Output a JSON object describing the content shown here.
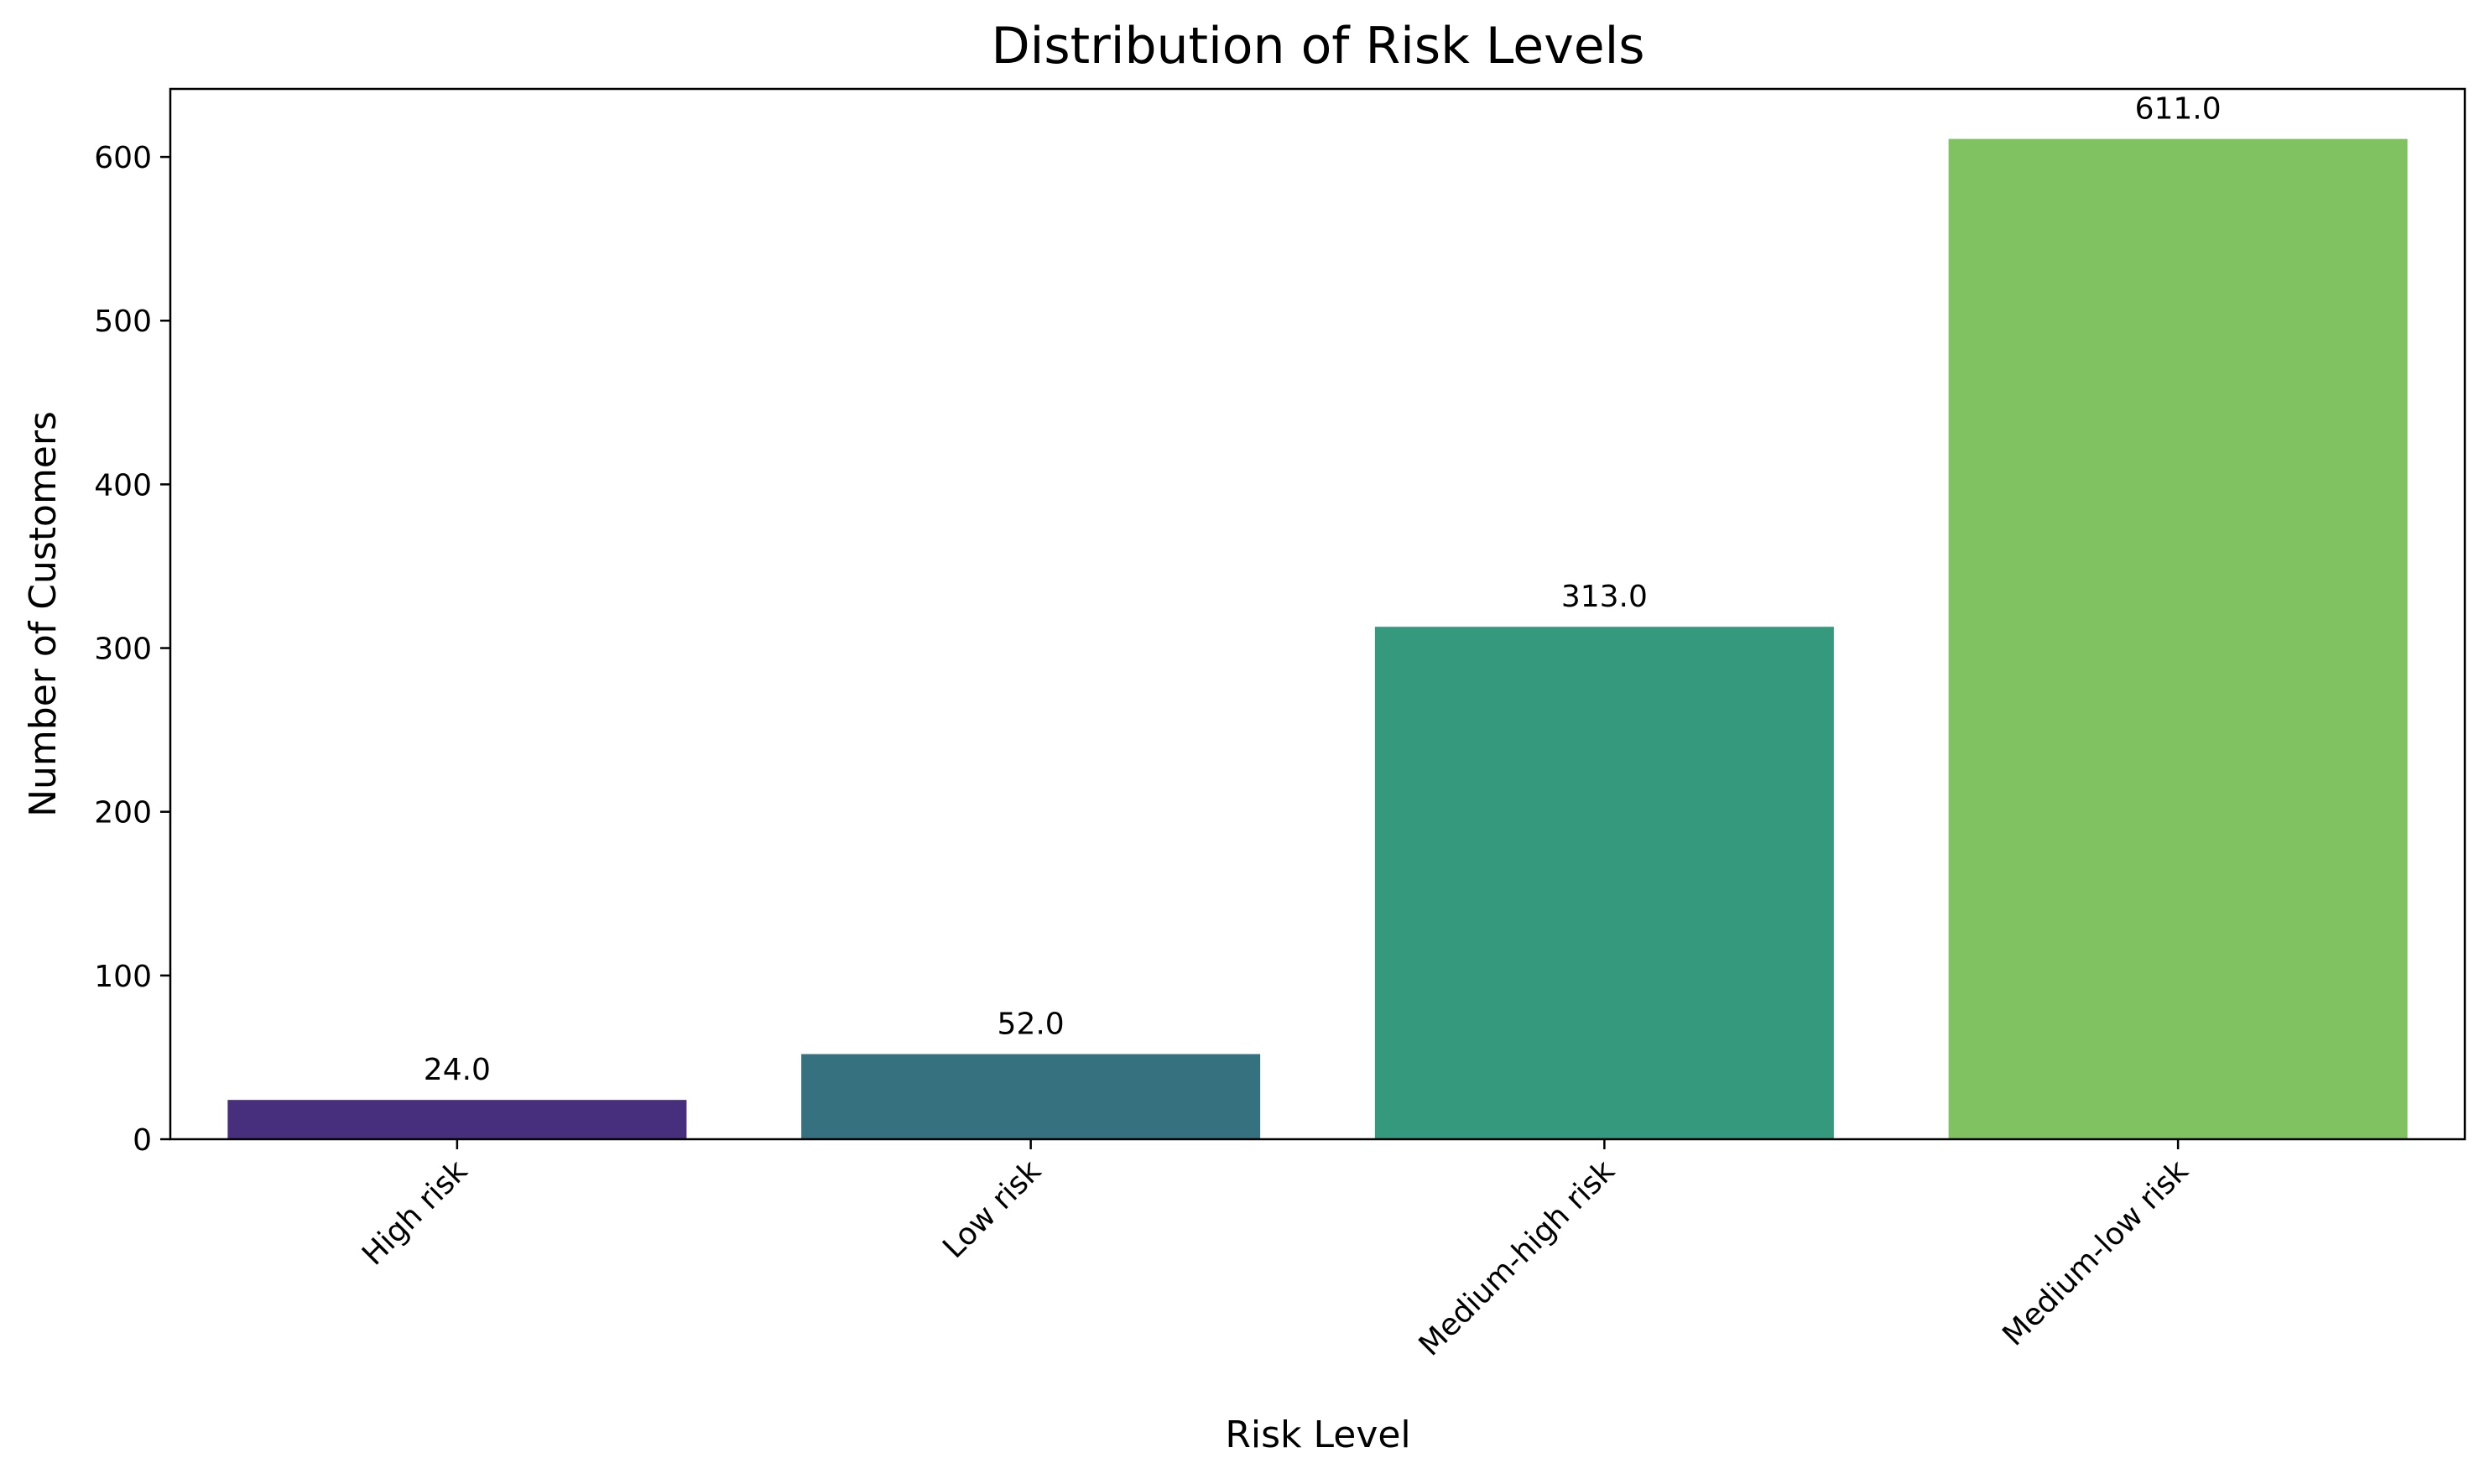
{
  "chart_data": {
    "type": "bar",
    "title": "Distribution of Risk Levels",
    "xlabel": "Risk Level",
    "ylabel": "Number of Customers",
    "categories": [
      "High risk",
      "Low risk",
      "Medium-high risk",
      "Medium-low risk"
    ],
    "values": [
      24,
      52,
      313,
      611
    ],
    "value_labels": [
      "24.0",
      "52.0",
      "313.0",
      "611.0"
    ],
    "colors": [
      "#472f7d",
      "#35717f",
      "#35997d",
      "#80c262"
    ],
    "ylim": [
      0,
      641.55
    ],
    "yticks": [
      0,
      100,
      200,
      300,
      400,
      500,
      600
    ],
    "grid": false,
    "legend": "none",
    "xtick_rotation": 45
  }
}
